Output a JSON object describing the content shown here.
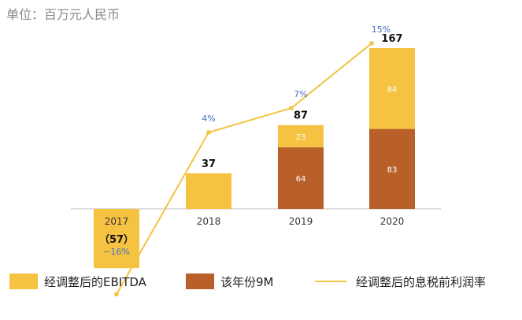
{
  "chart_data": {
    "type": "bar",
    "title": "单位：百万元人民币",
    "categories": [
      "2017",
      "2018",
      "2019",
      "2020"
    ],
    "series": [
      {
        "name": "该年份9M",
        "values": [
          null,
          null,
          64,
          83
        ],
        "color": "#b85f2a",
        "labels": [
          "",
          "",
          "64",
          "83"
        ]
      },
      {
        "name": "经调整后的EBITDA",
        "values": [
          -57,
          37,
          23,
          84
        ],
        "color": "#f5c242",
        "labels": [
          "",
          "",
          "23",
          "84"
        ]
      }
    ],
    "totals": [
      -57,
      37,
      87,
      167
    ],
    "total_labels": [
      "（57）",
      "37",
      "87",
      "167"
    ],
    "line_series": {
      "name": "经调整后的息税前利润率",
      "values": [
        -16,
        4,
        7,
        15
      ],
      "unit": "%",
      "labels": [
        "−16%",
        "4%",
        "7%",
        "15%"
      ],
      "color": "#f2c43f",
      "label_color": "#4a6fc9"
    },
    "legend": {
      "position": "bottom",
      "items": [
        {
          "label": "经调整后的EBITDA",
          "kind": "box",
          "color": "#f5c242"
        },
        {
          "label": "该年份9M",
          "kind": "box",
          "color": "#b85f2a"
        },
        {
          "label": "经调整后的息税前利润率",
          "kind": "line",
          "color": "#f2c43f"
        }
      ]
    },
    "grid": false
  }
}
